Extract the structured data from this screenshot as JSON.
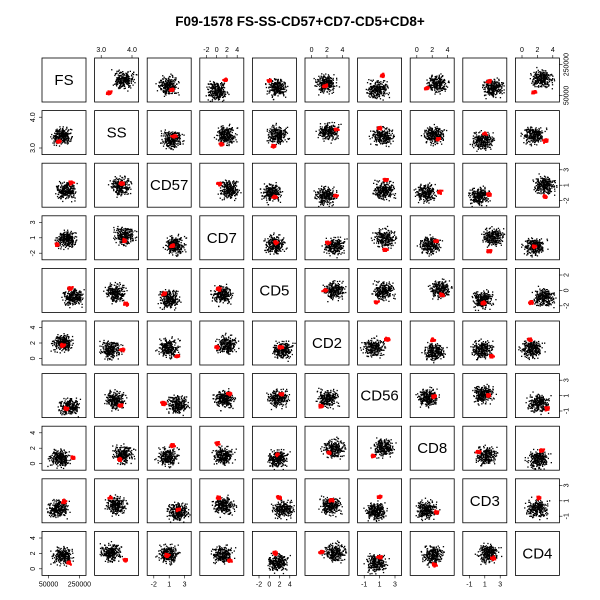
{
  "chart_data": {
    "type": "scatter",
    "subtype": "scatterplot-matrix",
    "title": "F09-1578 FS-SS-CD57+CD7-CD5+CD8+",
    "variables": [
      "FS",
      "SS",
      "CD57",
      "CD7",
      "CD5",
      "CD2",
      "CD56",
      "CD8",
      "CD3",
      "CD4"
    ],
    "tick_labels": {
      "top": [
        {
          "variable": "SS",
          "ticks": [
            "3.0",
            "4.0"
          ]
        },
        {
          "variable": "CD7",
          "ticks": [
            "-2",
            "0",
            "2",
            "4"
          ]
        },
        {
          "variable": "CD2",
          "ticks": [
            "0",
            "2",
            "4"
          ]
        },
        {
          "variable": "CD8",
          "ticks": [
            "0",
            "2",
            "4"
          ]
        },
        {
          "variable": "CD4",
          "ticks": [
            "0",
            "2",
            "4"
          ]
        }
      ],
      "bottom": [
        {
          "variable": "FS",
          "ticks": [
            "50000",
            "250000"
          ]
        },
        {
          "variable": "CD57",
          "ticks": [
            "-2",
            "1",
            "3"
          ]
        },
        {
          "variable": "CD5",
          "ticks": [
            "-2",
            "0",
            "2",
            "4"
          ]
        },
        {
          "variable": "CD56",
          "ticks": [
            "-1",
            "1",
            "3"
          ]
        },
        {
          "variable": "CD3",
          "ticks": [
            "-1",
            "1",
            "3"
          ]
        }
      ],
      "left": [
        {
          "variable": "SS",
          "ticks": [
            "3.0",
            "4.0"
          ]
        },
        {
          "variable": "CD7",
          "ticks": [
            "-2",
            "1",
            "3"
          ]
        },
        {
          "variable": "CD2",
          "ticks": [
            "0",
            "2",
            "4"
          ]
        },
        {
          "variable": "CD8",
          "ticks": [
            "0",
            "2",
            "4"
          ]
        },
        {
          "variable": "CD4",
          "ticks": [
            "0",
            "2",
            "4"
          ]
        }
      ],
      "right": [
        {
          "variable": "FS",
          "ticks": [
            "50000",
            "250000"
          ]
        },
        {
          "variable": "CD57",
          "ticks": [
            "-2",
            "1",
            "3"
          ]
        },
        {
          "variable": "CD5",
          "ticks": [
            "-2",
            "0",
            "2"
          ]
        },
        {
          "variable": "CD56",
          "ticks": [
            "-1",
            "1",
            "3"
          ]
        },
        {
          "variable": "CD3",
          "ticks": [
            "-1",
            "1",
            "3"
          ]
        }
      ]
    },
    "colors": {
      "all_events": "#000000",
      "gated_events": "#ff0000"
    }
  }
}
